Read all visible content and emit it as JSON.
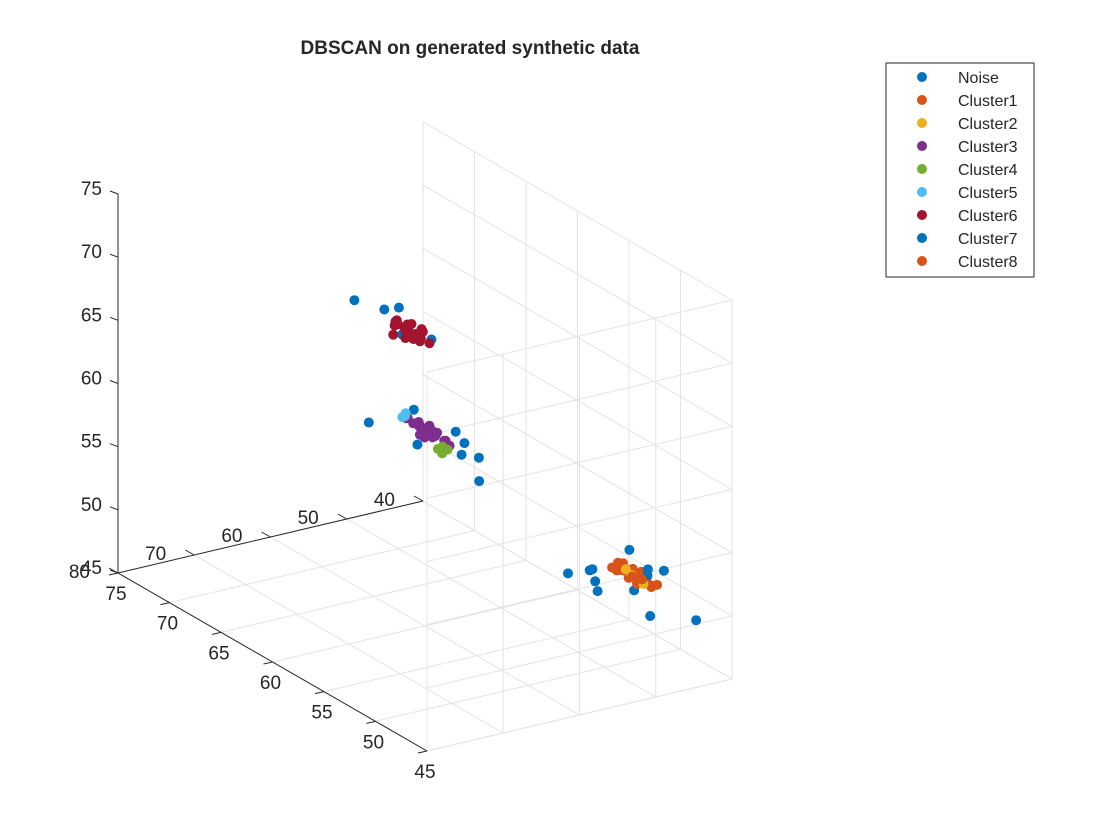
{
  "chart_data": {
    "type": "scatter",
    "title": "DBSCAN on generated synthetic data",
    "xlabel": "",
    "ylabel": "",
    "zlabel": "",
    "projection": "3d",
    "xlim": [
      45,
      75
    ],
    "ylim": [
      40,
      80
    ],
    "zlim": [
      45,
      75
    ],
    "x_ticks": [
      45,
      50,
      55,
      60,
      65,
      70,
      75
    ],
    "y_ticks": [
      40,
      50,
      60,
      70,
      80
    ],
    "z_ticks": [
      45,
      50,
      55,
      60,
      65,
      70,
      75
    ],
    "grid": true,
    "legend_position": "top-right",
    "series": [
      {
        "name": "Noise",
        "color": "#0072BD",
        "points": [
          [
            53.0,
            47.5,
            51.0
          ],
          [
            54.0,
            46.5,
            50.3
          ],
          [
            47.0,
            42.0,
            49.0
          ],
          [
            54.8,
            44.7,
            48.8
          ],
          [
            52.0,
            44.0,
            52.5
          ],
          [
            50.5,
            41.5,
            51.2
          ],
          [
            55.0,
            48.0,
            49.8
          ],
          [
            48.5,
            46.0,
            49.2
          ],
          [
            52.5,
            47.5,
            49.5
          ],
          [
            50.8,
            45.0,
            50.0
          ],
          [
            57.8,
            57.8,
            60.2
          ],
          [
            58.5,
            58.0,
            60.8
          ],
          [
            62.5,
            64.0,
            60.5
          ],
          [
            60.5,
            60.8,
            62.0
          ],
          [
            55.7,
            58.7,
            58.3
          ],
          [
            58.6,
            62.5,
            61.2
          ],
          [
            60.0,
            61.0,
            59.5
          ],
          [
            56.4,
            57.8,
            59.7
          ],
          [
            58.0,
            57.9,
            59.2
          ],
          [
            60.2,
            59.5,
            60.5
          ],
          [
            61.5,
            61.4,
            69.7
          ],
          [
            63.8,
            60.2,
            68.3
          ],
          [
            62.7,
            59.0,
            67.2
          ],
          [
            61.3,
            57.4,
            66.7
          ],
          [
            60.0,
            63.0,
            68.5
          ],
          [
            65.0,
            62.5,
            68.8
          ]
        ]
      },
      {
        "name": "Cluster1",
        "color": "#D95319",
        "points": [
          [
            50.8,
            44.2,
            51.2
          ],
          [
            51.2,
            44.8,
            51.3
          ],
          [
            50.3,
            44.2,
            51.1
          ],
          [
            51.5,
            45.5,
            51.9
          ],
          [
            50.5,
            45.5,
            51.4
          ],
          [
            49.8,
            44.0,
            50.7
          ],
          [
            51.8,
            45.0,
            51.1
          ],
          [
            50.0,
            45.0,
            51.2
          ],
          [
            51.0,
            43.8,
            51.2
          ],
          [
            52.0,
            45.5,
            51.1
          ],
          [
            50.5,
            46.0,
            51.5
          ],
          [
            51.3,
            44.5,
            51.4
          ],
          [
            49.5,
            44.5,
            50.8
          ],
          [
            52.2,
            46.0,
            51.3
          ],
          [
            50.7,
            43.5,
            50.7
          ],
          [
            51.7,
            44.5,
            50.5
          ],
          [
            50.2,
            45.8,
            51.6
          ],
          [
            51.4,
            46.3,
            52.1
          ],
          [
            49.9,
            43.2,
            50.6
          ],
          [
            52.5,
            45.0,
            50.8
          ],
          [
            50.6,
            44.9,
            50.6
          ],
          [
            51.1,
            45.2,
            51.5
          ]
        ]
      },
      {
        "name": "Cluster2",
        "color": "#EDB120",
        "points": [
          [
            51.8,
            44.0,
            50.6
          ],
          [
            52.2,
            44.2,
            50.9
          ],
          [
            51.0,
            43.5,
            50.2
          ]
        ]
      },
      {
        "name": "Cluster3",
        "color": "#7E2F8E",
        "points": [
          [
            59.0,
            60.0,
            60.5
          ],
          [
            59.5,
            60.0,
            60.8
          ],
          [
            58.5,
            59.5,
            60.3
          ],
          [
            60.2,
            60.5,
            60.8
          ],
          [
            59.8,
            61.0,
            61.2
          ],
          [
            58.5,
            61.0,
            61.0
          ],
          [
            60.5,
            59.5,
            60.3
          ],
          [
            58.8,
            59.0,
            59.8
          ],
          [
            59.2,
            60.5,
            61.3
          ],
          [
            61.0,
            60.2,
            60.6
          ],
          [
            58.0,
            60.0,
            60.6
          ],
          [
            60.0,
            59.0,
            59.8
          ],
          [
            59.5,
            61.5,
            61.6
          ],
          [
            60.8,
            61.2,
            61.3
          ],
          [
            58.2,
            59.2,
            60.0
          ],
          [
            59.9,
            60.2,
            60.0
          ],
          [
            61.2,
            60.8,
            61.0
          ],
          [
            58.8,
            60.8,
            61.2
          ],
          [
            60.5,
            60.0,
            59.9
          ],
          [
            59.2,
            59.5,
            60.6
          ]
        ]
      },
      {
        "name": "Cluster4",
        "color": "#77AC30",
        "points": [
          [
            58.6,
            59.6,
            59.8
          ],
          [
            58.9,
            59.8,
            59.5
          ],
          [
            58.4,
            59.2,
            59.6
          ],
          [
            58.7,
            59.5,
            59.2
          ]
        ]
      },
      {
        "name": "Cluster5",
        "color": "#4DBEEE",
        "points": [
          [
            61.5,
            60.5,
            61.2
          ],
          [
            61.8,
            60.2,
            60.8
          ],
          [
            61.6,
            60.8,
            60.9
          ]
        ]
      },
      {
        "name": "Cluster6",
        "color": "#A2142F",
        "points": [
          [
            61.2,
            59.5,
            67.5
          ],
          [
            61.8,
            60.0,
            67.8
          ],
          [
            62.0,
            59.8,
            67.6
          ],
          [
            60.8,
            59.2,
            67.8
          ],
          [
            62.5,
            60.5,
            68.0
          ],
          [
            61.0,
            60.5,
            67.6
          ],
          [
            62.3,
            59.0,
            67.1
          ],
          [
            61.5,
            60.3,
            68.2
          ],
          [
            60.5,
            60.0,
            67.3
          ],
          [
            62.8,
            60.2,
            67.5
          ],
          [
            61.3,
            58.8,
            67.0
          ],
          [
            62.0,
            61.0,
            68.4
          ],
          [
            61.7,
            59.2,
            66.8
          ],
          [
            63.0,
            59.5,
            67.4
          ],
          [
            60.7,
            59.5,
            68.1
          ],
          [
            62.5,
            60.8,
            67.0
          ],
          [
            61.2,
            61.0,
            68.0
          ],
          [
            62.2,
            58.8,
            67.7
          ],
          [
            60.3,
            59.0,
            67.1
          ],
          [
            61.9,
            60.0,
            66.9
          ]
        ]
      },
      {
        "name": "Cluster7",
        "color": "#0072BD",
        "points": [
          [
            49.8,
            44.6,
            51.6
          ],
          [
            50.2,
            44.0,
            51.8
          ]
        ]
      },
      {
        "name": "Cluster8",
        "color": "#D95319",
        "points": [
          [
            50.4,
            44.5,
            51.0
          ],
          [
            51.0,
            45.0,
            51.0
          ],
          [
            50.7,
            44.7,
            50.9
          ]
        ]
      }
    ]
  }
}
